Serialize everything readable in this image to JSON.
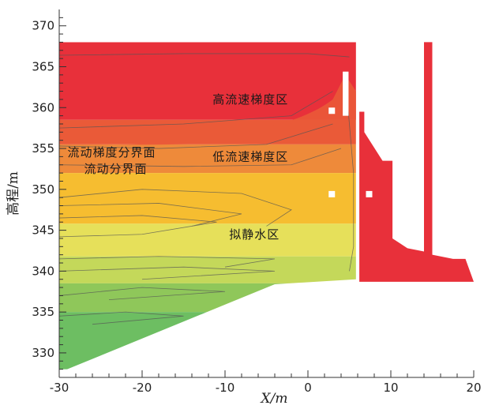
{
  "chart_data": {
    "type": "area",
    "title": "",
    "xlabel": "X/m",
    "ylabel": "高程/m",
    "xlim": [
      -30,
      20
    ],
    "ylim": [
      327,
      372
    ],
    "x_ticks": [
      "-30",
      "-20",
      "-10",
      "0",
      "10",
      "20"
    ],
    "y_ticks": [
      "330",
      "335",
      "340",
      "345",
      "350",
      "355",
      "360",
      "365",
      "370"
    ],
    "annotations": [
      {
        "text": "高流速梯度区",
        "x": -11.5,
        "y": 361.0
      },
      {
        "text": "流动梯度分界面",
        "x": -29.0,
        "y": 354.5
      },
      {
        "text": "流动分界面",
        "x": -27.0,
        "y": 352.5
      },
      {
        "text": "低流速梯度区",
        "x": -11.5,
        "y": 354.0
      },
      {
        "text": "拟静水区",
        "x": -9.5,
        "y": 344.5
      }
    ],
    "bands": [
      {
        "name": "red",
        "color": "#e8303a",
        "y0": 358.5,
        "y1": 368.0
      },
      {
        "name": "orange-red",
        "color": "#ea5a38",
        "y0": 355.5,
        "y1": 358.5
      },
      {
        "name": "orange",
        "color": "#ee8a3a",
        "y0": 352.0,
        "y1": 355.5
      },
      {
        "name": "amber",
        "color": "#f6bd30",
        "y0": 345.8,
        "y1": 352.0
      },
      {
        "name": "yellow",
        "color": "#e6e05a",
        "y0": 341.8,
        "y1": 345.8
      },
      {
        "name": "yellow-green",
        "color": "#c4d85a",
        "y0": 338.5,
        "y1": 341.8
      },
      {
        "name": "light-green",
        "color": "#8fc75a",
        "y0": 335.0,
        "y1": 338.5
      },
      {
        "name": "green",
        "color": "#6dbe62",
        "y0": 328.0,
        "y1": 335.0
      }
    ],
    "dam_color": "#e8303a"
  }
}
